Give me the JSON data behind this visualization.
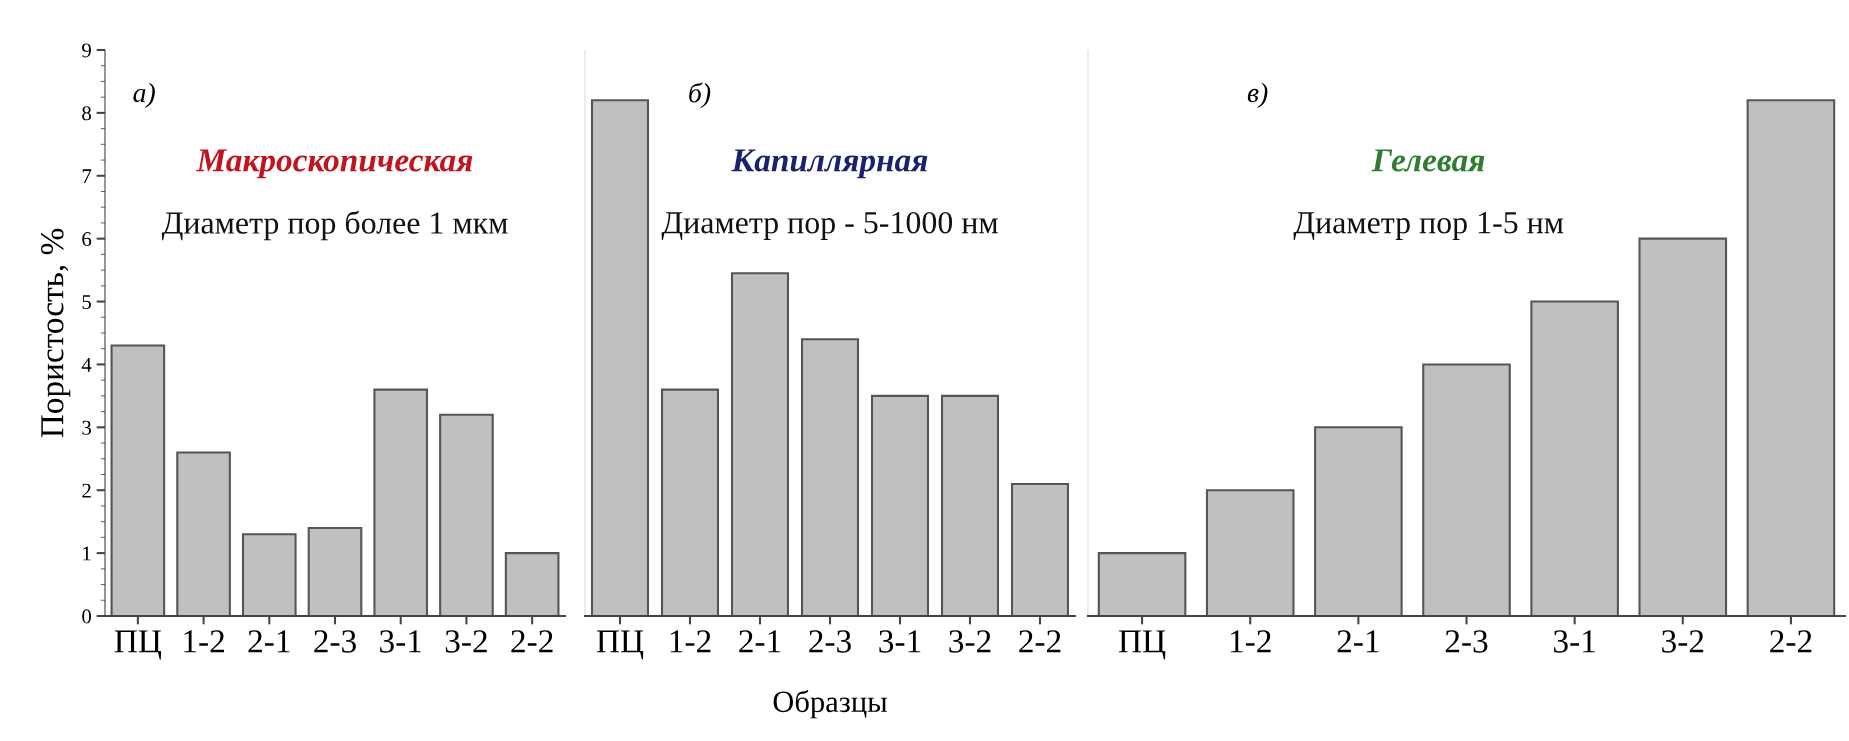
{
  "chart_data": [
    {
      "type": "bar",
      "title": "Макроскопическая",
      "subtitle": "Диаметр пор более 1 мкм",
      "annotations": [
        "а)"
      ],
      "ylabel": "Пористость, %",
      "categories": [
        "ПЦ",
        "1-2",
        "2-1",
        "2-3",
        "3-1",
        "3-2",
        "2-2"
      ],
      "values": [
        4.3,
        2.6,
        1.3,
        1.4,
        3.6,
        3.2,
        1.0
      ],
      "color": "#c0c0c0",
      "ylim": [
        0,
        9
      ],
      "yticks": [
        0,
        1,
        2,
        3,
        4,
        5,
        6,
        7,
        8,
        9
      ],
      "grid": false,
      "legend": false
    },
    {
      "type": "bar",
      "title": "Капиллярная",
      "subtitle": "Диаметр пор - 5-1000 нм",
      "annotations": [
        "б)"
      ],
      "xlabel": "Образцы",
      "categories": [
        "ПЦ",
        "1-2",
        "2-1",
        "2-3",
        "3-1",
        "3-2",
        "2-2"
      ],
      "values": [
        8.2,
        3.6,
        5.45,
        4.4,
        3.5,
        3.5,
        2.1
      ],
      "color": "#c0c0c0",
      "ylim": [
        0,
        9
      ],
      "yticks": [
        0,
        1,
        2,
        3,
        4,
        5,
        6,
        7,
        8,
        9
      ],
      "tick_labels": "x",
      "grid": false,
      "legend": false
    },
    {
      "type": "bar",
      "title": "Гелевая",
      "subtitle": "Диаметр пор 1-5 нм",
      "annotations": [
        "в)"
      ],
      "categories": [
        "ПЦ",
        "1-2",
        "2-1",
        "2-3",
        "3-1",
        "3-2",
        "2-2"
      ],
      "values": [
        1.0,
        2.0,
        3.0,
        4.0,
        5.0,
        6.0,
        8.2
      ],
      "color": "#c0c0c0",
      "ylim": [
        0,
        9
      ],
      "yticks": [
        0,
        1,
        2,
        3,
        4,
        5,
        6,
        7,
        8,
        9
      ],
      "tick_labels": "x",
      "grid": false,
      "legend": false
    }
  ]
}
